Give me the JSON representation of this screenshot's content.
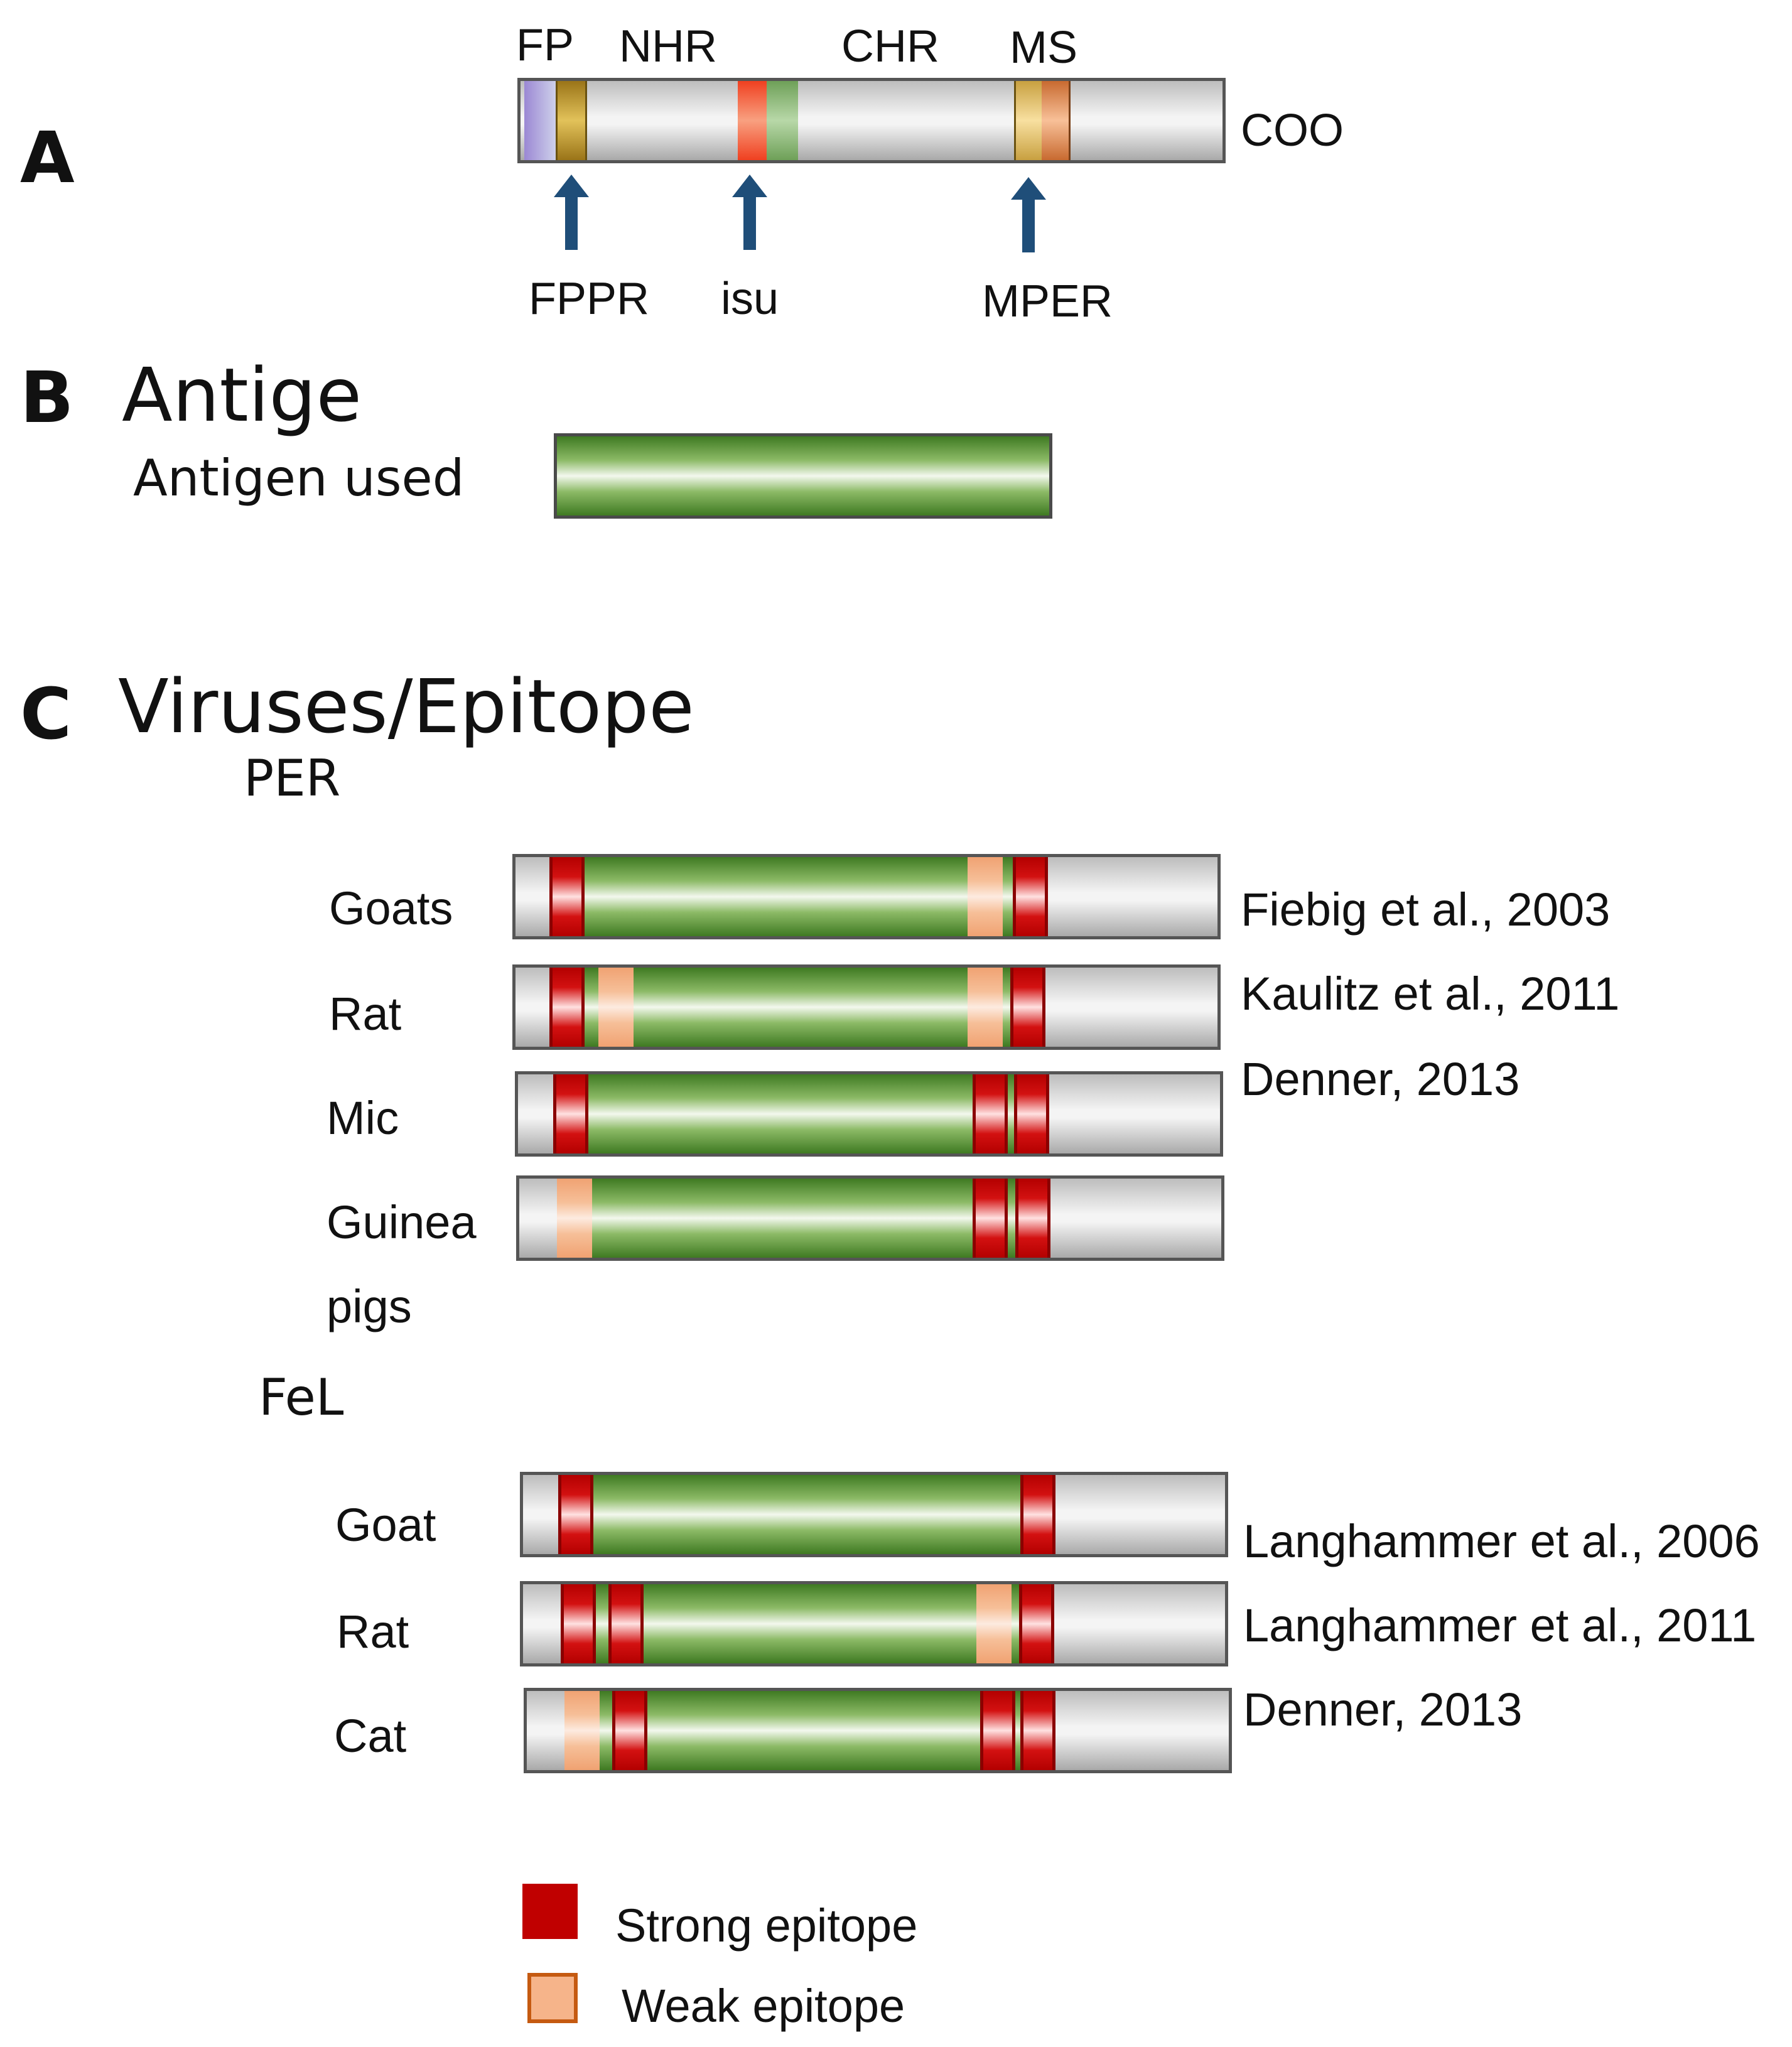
{
  "panel_a": {
    "letter": "A",
    "domain_labels": [
      "FP",
      "NHR",
      "CHR",
      "MS"
    ],
    "cterm_label": "COO",
    "arrow_labels": [
      "FPPR",
      "isu",
      "MPER"
    ],
    "colors": {
      "fp": "#b8b4e0",
      "fppr": "#b8941e",
      "isu": "#f06040",
      "green": "#90c080",
      "ms1": "#e0b850",
      "ms2": "#e08a50",
      "arrow": "#1f4e79"
    }
  },
  "panel_b": {
    "letter": "B",
    "heading": "Antige",
    "sublabel": "Antigen used"
  },
  "panel_c": {
    "letter": "C",
    "heading": "Viruses/Epitope",
    "groups": [
      {
        "name": "PER",
        "rows": [
          {
            "species": "Goats",
            "ref": "Fiebig et al., 2003"
          },
          {
            "species": "Rat",
            "ref": "Kaulitz et al., 2011"
          },
          {
            "species": "Mic",
            "ref": "Denner, 2013"
          },
          {
            "species": "Guinea",
            "species2": "pigs",
            "ref": ""
          }
        ]
      },
      {
        "name": "FeL",
        "rows": [
          {
            "species": "Goat",
            "ref": "Langhammer et al., 2006"
          },
          {
            "species": "Rat",
            "ref": "Langhammer et al., 2011"
          },
          {
            "species": "Cat",
            "ref": "Denner, 2013"
          }
        ]
      }
    ]
  },
  "legend": {
    "strong": "Strong epitope",
    "weak": "Weak epitope",
    "strong_color": "#c00000",
    "weak_color": "#f6b48a"
  }
}
